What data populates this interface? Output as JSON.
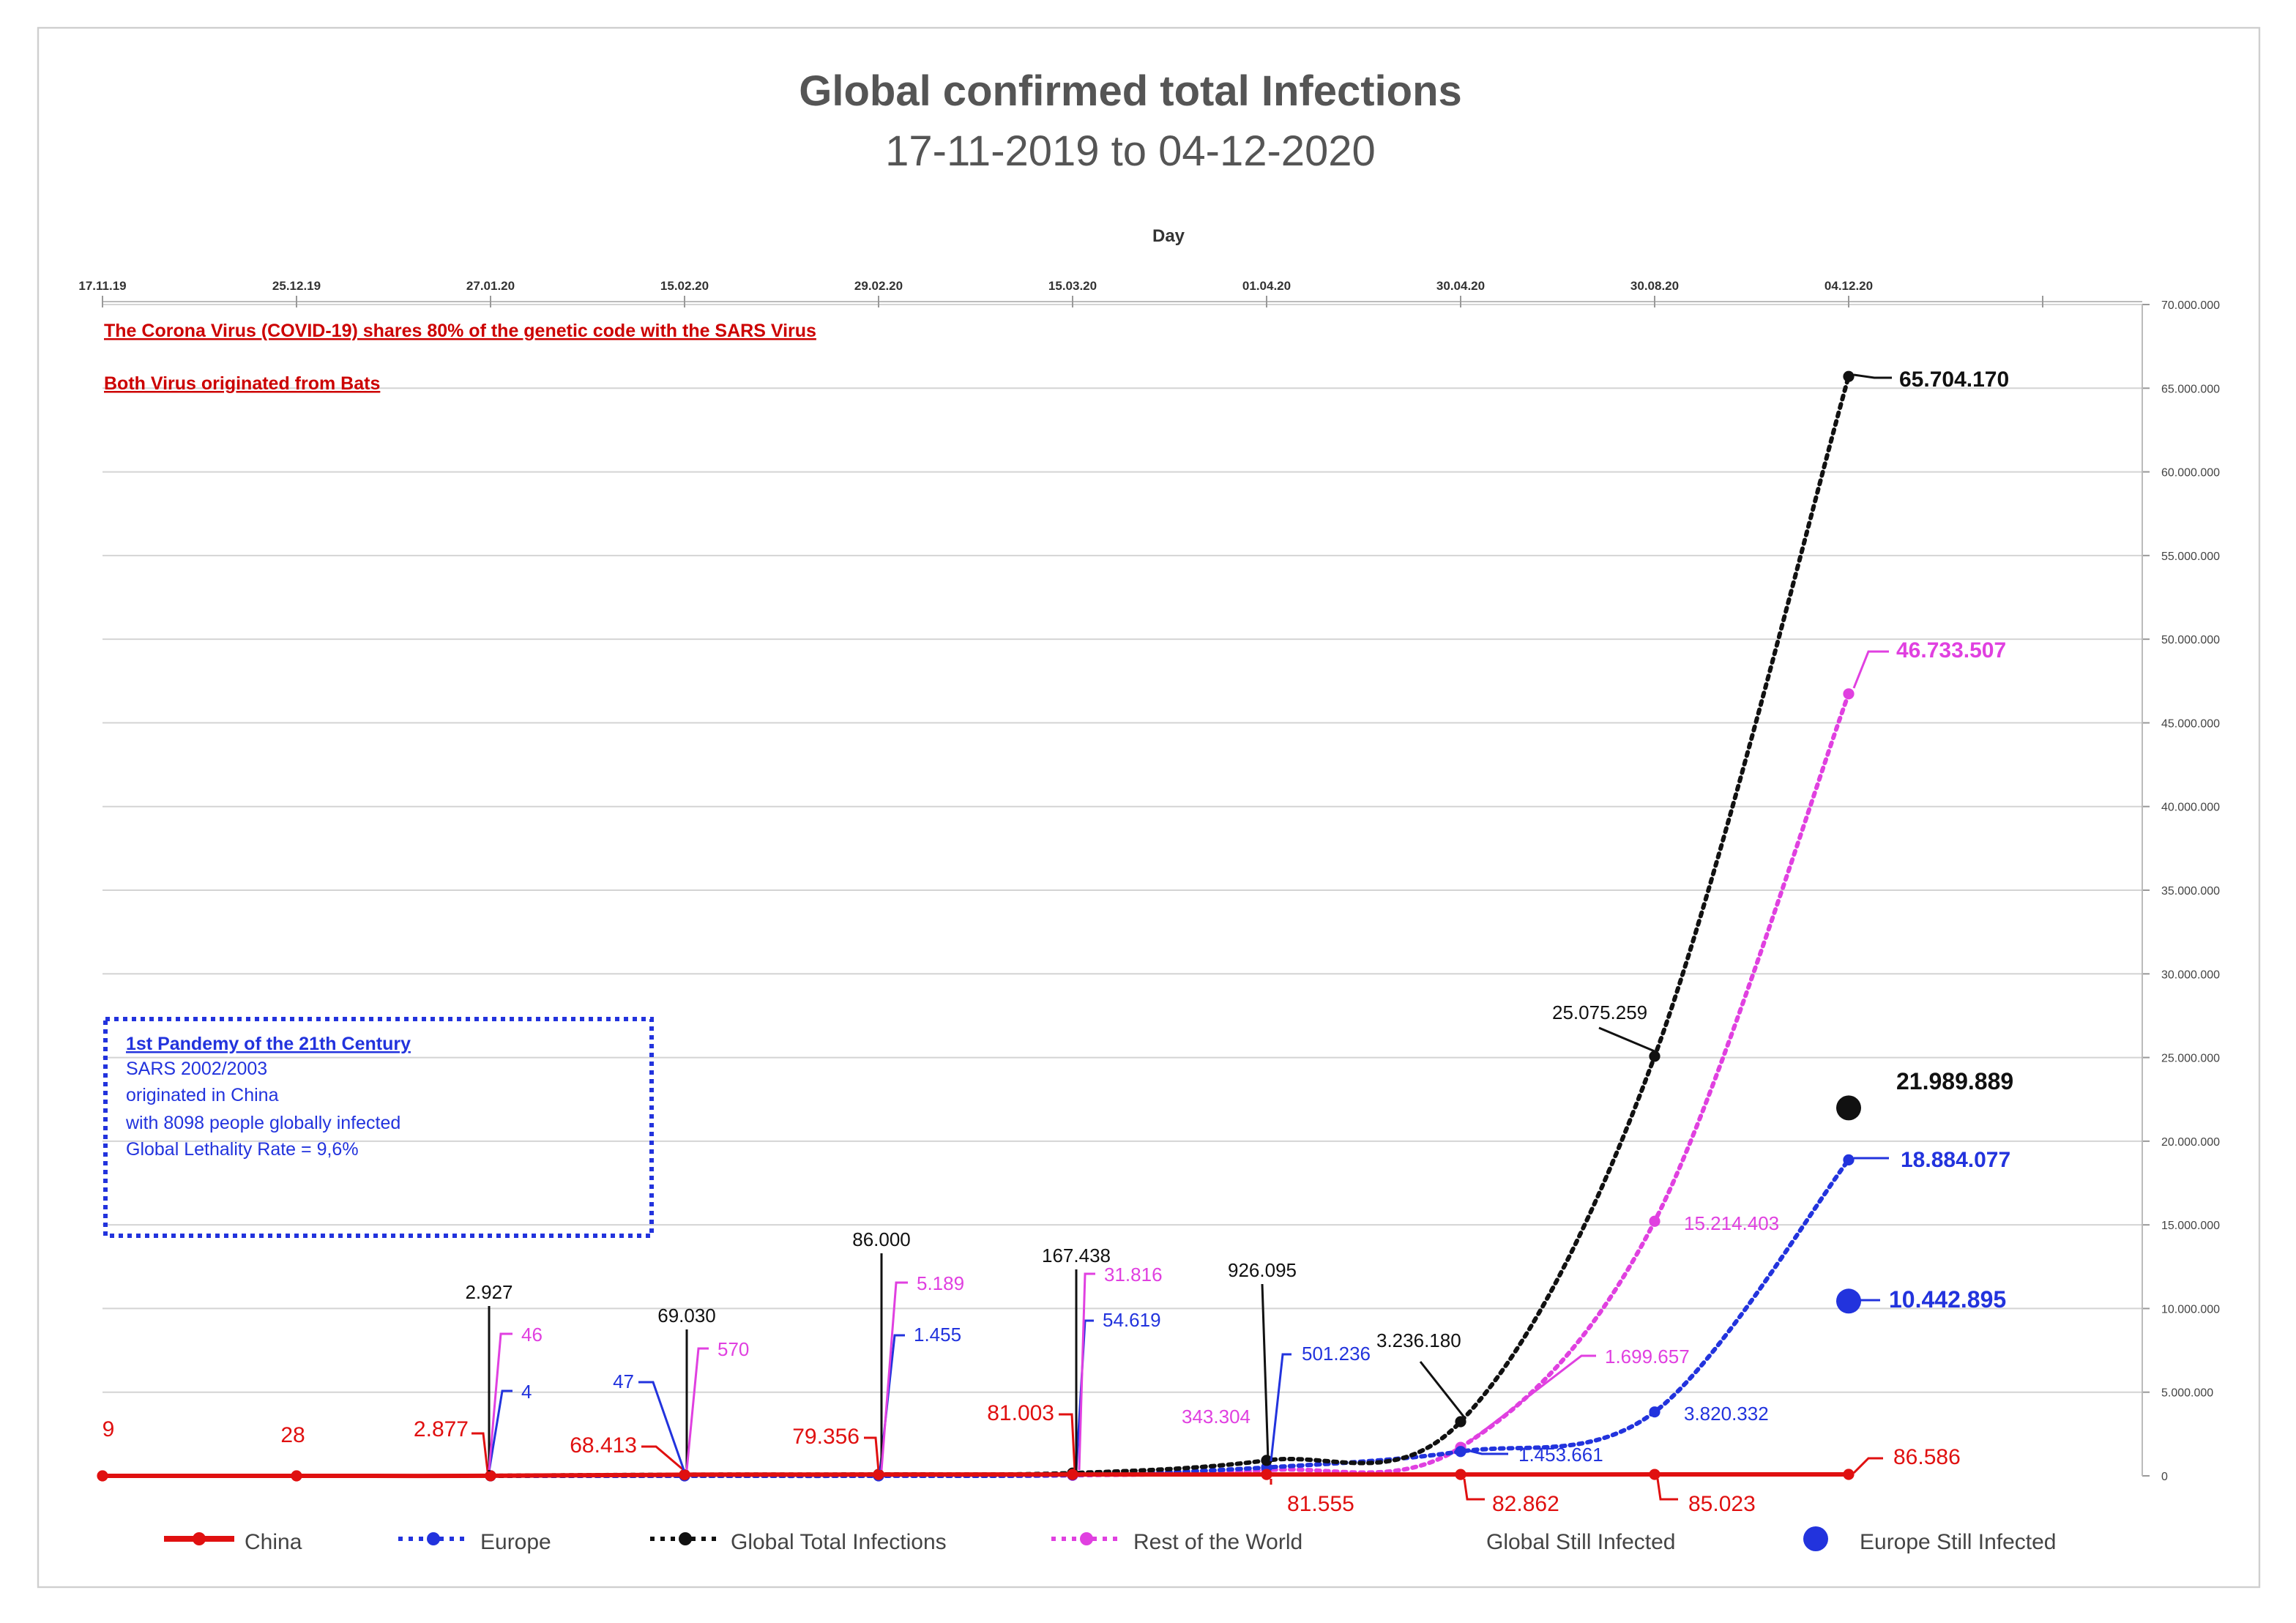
{
  "chart_data": {
    "type": "line",
    "title": "Global confirmed total Infections",
    "subtitle": "17-11-2019 to 04-12-2020",
    "xlabel": "Day",
    "categories": [
      "17.11.19",
      "25.12.19",
      "27.01.20",
      "15.02.20",
      "29.02.20",
      "15.03.20",
      "01.04.20",
      "30.04.20",
      "30.08.20",
      "04.12.20"
    ],
    "ylim": [
      0,
      70000000
    ],
    "y_ticks": [
      "0",
      "5.000.000",
      "10.000.000",
      "15.000.000",
      "20.000.000",
      "25.000.000",
      "30.000.000",
      "35.000.000",
      "40.000.000",
      "45.000.000",
      "50.000.000",
      "55.000.000",
      "60.000.000",
      "65.000.000",
      "70.000.000"
    ],
    "y_axis_position": "right",
    "x_axis_position": "top",
    "grid": true,
    "legend_position": "bottom",
    "series": [
      {
        "name": "China",
        "color": "#e01010",
        "style": "solid",
        "values": [
          9,
          28,
          2877,
          68413,
          79356,
          81003,
          81555,
          82862,
          85023,
          86586
        ],
        "labels": [
          "9",
          "28",
          "2.877",
          "68.413",
          "79.356",
          "81.003",
          "81.555",
          "82.862",
          "85.023",
          "86.586"
        ]
      },
      {
        "name": "Europe",
        "color": "#2233dd",
        "style": "dotted",
        "values": [
          null,
          null,
          4,
          47,
          1455,
          54619,
          501236,
          1453661,
          3820332,
          18884077
        ],
        "labels": [
          "",
          "",
          "4",
          "47",
          "1.455",
          "54.619",
          "501.236",
          "1.453.661",
          "3.820.332",
          "18.884.077"
        ]
      },
      {
        "name": "Global Total Infections",
        "color": "#111111",
        "style": "dotted",
        "values": [
          null,
          null,
          2927,
          69030,
          86000,
          167438,
          926095,
          3236180,
          25075259,
          65704170
        ],
        "labels": [
          "",
          "",
          "2.927",
          "69.030",
          "86.000",
          "167.438",
          "926.095",
          "3.236.180",
          "25.075.259",
          "65.704.170"
        ]
      },
      {
        "name": "Rest of the World",
        "color": "#e040e0",
        "style": "dotted",
        "values": [
          null,
          null,
          46,
          570,
          5189,
          31816,
          343304,
          1699657,
          15214403,
          46733507
        ],
        "labels": [
          "",
          "",
          "46",
          "570",
          "5.189",
          "31.816",
          "343.304",
          "1.699.657",
          "15.214.403",
          "46.733.507"
        ]
      },
      {
        "name": "Global Still Infected",
        "color": "#111111",
        "style": "marker",
        "values": [
          null,
          null,
          null,
          null,
          null,
          null,
          null,
          null,
          null,
          21989889
        ],
        "labels": [
          "",
          "",
          "",
          "",
          "",
          "",
          "",
          "",
          "",
          "21.989.889"
        ]
      },
      {
        "name": "Europe Still Infected",
        "color": "#2233dd",
        "style": "marker",
        "values": [
          null,
          null,
          null,
          null,
          null,
          null,
          null,
          null,
          null,
          10442895
        ],
        "labels": [
          "",
          "",
          "",
          "",
          "",
          "",
          "",
          "",
          "",
          "10.442.895"
        ]
      }
    ],
    "annotations": {
      "note_1": "The Corona  Virus (COVID-19)  shares 80% of the genetic code with the SARS Virus",
      "note_2": "Both Virus originated from Bats",
      "box_title": "1st Pandemy of the 21th Century",
      "box_lines": [
        "SARS 2002/2003",
        "originated in China",
        "with 8098 people globally infected",
        "Global Lethality Rate = 9,6%"
      ]
    }
  },
  "colors": {
    "china": "#e01010",
    "europe": "#2233dd",
    "global": "#111111",
    "rest": "#e040e0",
    "grid": "#d4d4d4",
    "title": "#555555"
  }
}
